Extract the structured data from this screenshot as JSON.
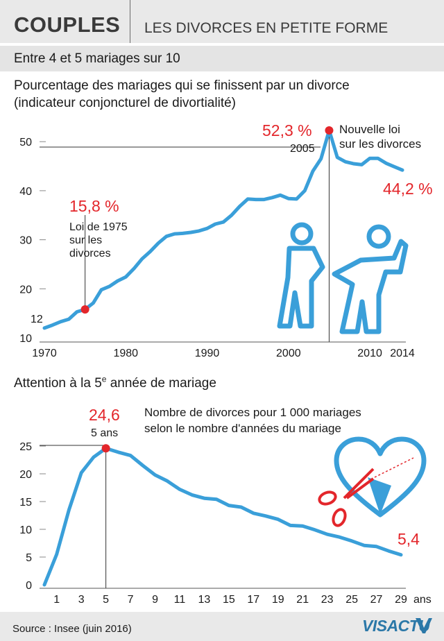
{
  "header": {
    "title": "COUPLES",
    "subtitle": "LES DIVORCES EN PETITE FORME"
  },
  "banner": "Entre 4 et 5 mariages sur 10",
  "chart1_title_line1": "Pourcentage des mariages qui se finissent par un divorce",
  "chart1_title_line2": "(indicateur conjoncturel de divortialité)",
  "chart2_title_prefix": "Attention à la 5",
  "chart2_title_sup": "e",
  "chart2_title_suffix": " année de mariage",
  "footer": {
    "source": "Source : Insee (juin 2016)",
    "logo": "VISACTU"
  },
  "colors": {
    "line": "#3a9fd9",
    "highlight": "#e3262b",
    "text": "#1a1a1a",
    "band": "#e4e4e4"
  },
  "icons": [
    "couple-silhouette-icon",
    "broken-heart-scissors-icon",
    "visactu-logo-icon"
  ],
  "chart_data": [
    {
      "type": "line",
      "title": "Pourcentage des mariages qui se finissent par un divorce",
      "subtitle": "(indicateur conjoncturel de divortialité)",
      "xlabel": "",
      "ylabel": "",
      "xlim": [
        1970,
        2014
      ],
      "ylim": [
        10,
        52
      ],
      "x_ticks": [
        "1970",
        "1980",
        "1990",
        "2000",
        "2010",
        "2014"
      ],
      "y_ticks": [
        "10",
        "20",
        "30",
        "40",
        "50"
      ],
      "grid": false,
      "x": [
        1970,
        1971,
        1972,
        1973,
        1974,
        1975,
        1976,
        1977,
        1978,
        1979,
        1980,
        1981,
        1982,
        1983,
        1984,
        1985,
        1986,
        1987,
        1988,
        1989,
        1990,
        1991,
        1992,
        1993,
        1994,
        1995,
        1996,
        1997,
        1998,
        1999,
        2000,
        2001,
        2002,
        2003,
        2004,
        2005,
        2006,
        2007,
        2008,
        2009,
        2010,
        2011,
        2012,
        2013,
        2014
      ],
      "series": [
        {
          "values": [
            12.0,
            12.6,
            13.3,
            13.8,
            15.3,
            15.8,
            17.1,
            19.8,
            20.5,
            21.6,
            22.4,
            24.1,
            26.1,
            27.6,
            29.3,
            30.7,
            31.2,
            31.3,
            31.5,
            31.8,
            32.3,
            33.2,
            33.6,
            35.0,
            36.8,
            38.3,
            38.2,
            38.2,
            38.6,
            39.1,
            38.4,
            38.3,
            40.0,
            44.0,
            46.5,
            52.3,
            46.8,
            45.9,
            45.5,
            45.3,
            46.6,
            46.6,
            45.6,
            44.9,
            44.2
          ]
        }
      ],
      "annotations": [
        {
          "value": "15,8 %",
          "lines": [
            "Loi de 1975",
            "sur les",
            "divorces"
          ],
          "x": 1975,
          "y": 15.8
        },
        {
          "value": "52,3 %",
          "label": "2005",
          "x": 2005,
          "y": 52.3
        },
        {
          "lines": [
            "Nouvelle loi",
            "sur les divorces"
          ],
          "x": 2005
        },
        {
          "value": "44,2 %",
          "x": 2014,
          "y": 44.2
        },
        {
          "value": "12",
          "x": 1970,
          "y": 12.0
        }
      ]
    },
    {
      "type": "line",
      "title": "Attention à la 5e année de mariage",
      "description_lines": [
        "Nombre de divorces pour 1 000 mariages",
        "selon le nombre d'années du mariage"
      ],
      "xlabel": "",
      "ylabel": "",
      "xlim": [
        0,
        29
      ],
      "ylim": [
        0,
        25
      ],
      "x_ticks": [
        "1",
        "3",
        "5",
        "7",
        "9",
        "11",
        "13",
        "15",
        "17",
        "19",
        "21",
        "23",
        "25",
        "27",
        "29"
      ],
      "x_unit": "ans",
      "y_ticks": [
        "0",
        "5",
        "10",
        "15",
        "20",
        "25"
      ],
      "grid": false,
      "x": [
        0,
        1,
        2,
        3,
        4,
        5,
        6,
        7,
        8,
        9,
        10,
        11,
        12,
        13,
        14,
        15,
        16,
        17,
        18,
        19,
        20,
        21,
        22,
        23,
        24,
        25,
        26,
        27,
        28,
        29
      ],
      "series": [
        {
          "values": [
            0.0,
            5.5,
            13.5,
            20.2,
            23.0,
            24.6,
            23.9,
            23.3,
            21.5,
            19.8,
            18.7,
            17.2,
            16.2,
            15.6,
            15.4,
            14.3,
            14.0,
            12.9,
            12.4,
            11.8,
            10.7,
            10.6,
            9.9,
            9.1,
            8.6,
            7.9,
            7.1,
            6.9,
            6.1,
            5.4
          ]
        }
      ],
      "annotations": [
        {
          "value": "24,6",
          "label": "5 ans",
          "x": 5,
          "y": 24.6
        },
        {
          "value": "5,4",
          "x": 29,
          "y": 5.4
        }
      ]
    }
  ]
}
